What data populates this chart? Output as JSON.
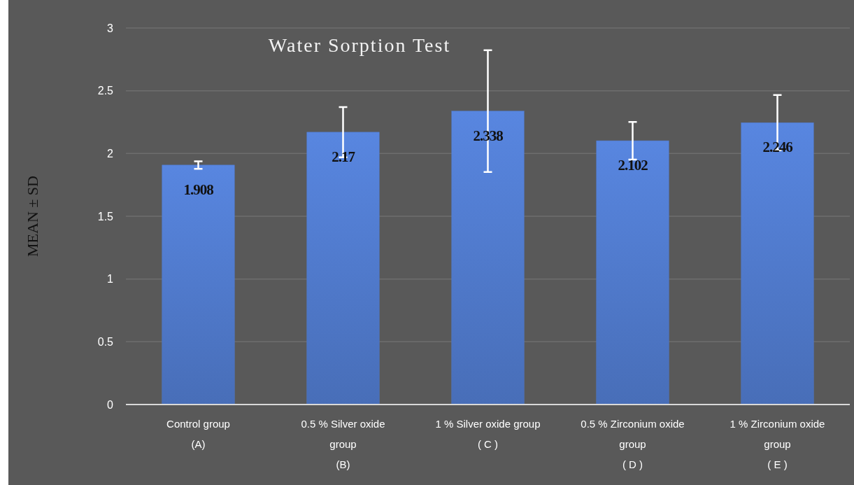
{
  "chart_data": {
    "type": "bar",
    "title": "Water Sorption Test",
    "ylabel": "MEAN ± SD",
    "categories": [
      "Control group\n(A)",
      "0.5 % Silver oxide\ngroup\n(B)",
      "1 % Silver oxide group\n( C )",
      "0.5 % Zirconium oxide\ngroup\n( D )",
      "1 % Zirconium oxide\ngroup\n( E )"
    ],
    "values": [
      1.908,
      2.17,
      2.338,
      2.102,
      2.246
    ],
    "errors": [
      0.03,
      0.2,
      0.485,
      0.15,
      0.22
    ],
    "color": "#4f78c9",
    "ylim": [
      0,
      3
    ],
    "yticks": [
      0,
      0.5,
      1,
      1.5,
      2,
      2.5,
      3
    ],
    "grid": "y",
    "data_labels": true
  }
}
